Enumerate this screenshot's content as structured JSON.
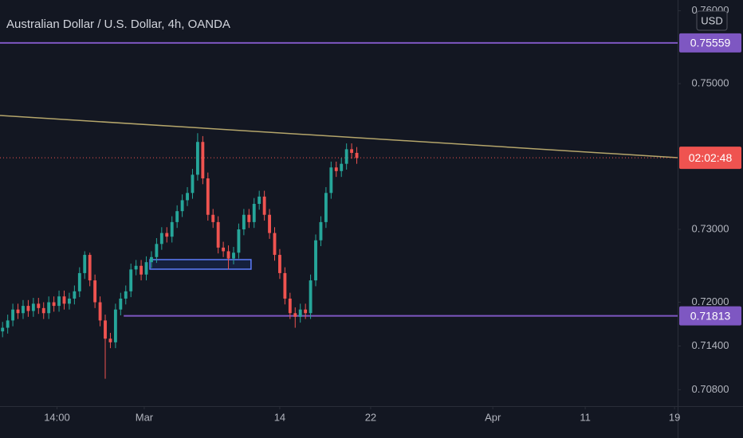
{
  "chart_data": {
    "type": "candlestick",
    "title": "Australian Dollar / U.S. Dollar, 4h, OANDA",
    "currency": "USD",
    "up_color": "#26a69a",
    "down_color": "#ef5350",
    "x": [
      0,
      1,
      2,
      3,
      4,
      5,
      6,
      7,
      8,
      9,
      10,
      11,
      12,
      13,
      14,
      15,
      16,
      17,
      18,
      19,
      20,
      21,
      22,
      23,
      24,
      25,
      26,
      27,
      28,
      29,
      30,
      31,
      32,
      33,
      34,
      35,
      36,
      37,
      38,
      39,
      40,
      41,
      42,
      43,
      44,
      45,
      46,
      47,
      48,
      49,
      50,
      51,
      52,
      53,
      54,
      55,
      56,
      57,
      58,
      59,
      60,
      61,
      62,
      63,
      64,
      65,
      66,
      67,
      68,
      69
    ],
    "open": [
      0.716,
      0.7165,
      0.7175,
      0.719,
      0.7185,
      0.7195,
      0.7188,
      0.7198,
      0.7192,
      0.7185,
      0.72,
      0.7195,
      0.7208,
      0.7198,
      0.7205,
      0.7215,
      0.724,
      0.7265,
      0.723,
      0.72,
      0.7175,
      0.715,
      0.7145,
      0.719,
      0.7205,
      0.7215,
      0.7245,
      0.725,
      0.7238,
      0.7255,
      0.7262,
      0.728,
      0.7295,
      0.729,
      0.731,
      0.7325,
      0.734,
      0.735,
      0.7375,
      0.742,
      0.737,
      0.732,
      0.731,
      0.7275,
      0.727,
      0.726,
      0.7268,
      0.73,
      0.732,
      0.731,
      0.7335,
      0.7345,
      0.732,
      0.7295,
      0.7265,
      0.724,
      0.7205,
      0.7185,
      0.718,
      0.719,
      0.7185,
      0.723,
      0.7285,
      0.731,
      0.735,
      0.7385,
      0.738,
      0.739,
      0.741,
      0.7405
    ],
    "high": [
      0.7173,
      0.7183,
      0.7198,
      0.7198,
      0.7203,
      0.7203,
      0.7206,
      0.7206,
      0.72,
      0.7208,
      0.7208,
      0.7216,
      0.7216,
      0.7213,
      0.7223,
      0.7248,
      0.727,
      0.7268,
      0.7238,
      0.7208,
      0.7183,
      0.7158,
      0.7198,
      0.7213,
      0.7223,
      0.7253,
      0.7258,
      0.7258,
      0.7263,
      0.727,
      0.7288,
      0.7303,
      0.7303,
      0.7318,
      0.7333,
      0.7348,
      0.7358,
      0.7383,
      0.7432,
      0.7428,
      0.7378,
      0.7328,
      0.7318,
      0.7283,
      0.7278,
      0.7276,
      0.7308,
      0.7328,
      0.7328,
      0.7343,
      0.7353,
      0.7353,
      0.7328,
      0.7303,
      0.7273,
      0.7248,
      0.7213,
      0.7193,
      0.7198,
      0.7198,
      0.7238,
      0.7293,
      0.7318,
      0.7358,
      0.7393,
      0.7393,
      0.7398,
      0.7418,
      0.7418,
      0.7413
    ],
    "low": [
      0.7152,
      0.7157,
      0.7167,
      0.7177,
      0.7177,
      0.718,
      0.718,
      0.7184,
      0.7177,
      0.7177,
      0.7187,
      0.7187,
      0.719,
      0.719,
      0.7197,
      0.7207,
      0.7232,
      0.7222,
      0.7192,
      0.7167,
      0.7095,
      0.7137,
      0.7137,
      0.7182,
      0.7197,
      0.7207,
      0.7237,
      0.723,
      0.723,
      0.7247,
      0.7254,
      0.7272,
      0.7282,
      0.7282,
      0.7302,
      0.7317,
      0.7332,
      0.7342,
      0.7367,
      0.7362,
      0.7312,
      0.7302,
      0.7267,
      0.7262,
      0.7245,
      0.7252,
      0.726,
      0.7292,
      0.7302,
      0.7302,
      0.7327,
      0.7312,
      0.7287,
      0.7257,
      0.7232,
      0.7197,
      0.7177,
      0.7165,
      0.7172,
      0.7177,
      0.7177,
      0.7222,
      0.7277,
      0.7302,
      0.7342,
      0.7372,
      0.7372,
      0.7382,
      0.7397,
      0.739
    ],
    "close": [
      0.7165,
      0.7175,
      0.719,
      0.7185,
      0.7195,
      0.7188,
      0.7198,
      0.7192,
      0.7185,
      0.72,
      0.7195,
      0.7208,
      0.7198,
      0.7205,
      0.7215,
      0.724,
      0.7265,
      0.723,
      0.72,
      0.7175,
      0.715,
      0.7145,
      0.719,
      0.7205,
      0.7215,
      0.7245,
      0.725,
      0.7238,
      0.7255,
      0.7262,
      0.728,
      0.7295,
      0.729,
      0.731,
      0.7325,
      0.734,
      0.735,
      0.7375,
      0.742,
      0.737,
      0.732,
      0.731,
      0.7275,
      0.727,
      0.726,
      0.7268,
      0.73,
      0.732,
      0.731,
      0.7335,
      0.7345,
      0.732,
      0.7295,
      0.7265,
      0.724,
      0.7205,
      0.7185,
      0.718,
      0.719,
      0.7185,
      0.723,
      0.7285,
      0.731,
      0.735,
      0.7385,
      0.738,
      0.739,
      0.741,
      0.7405,
      0.7398
    ],
    "xlim": [
      -0.5,
      131.5
    ],
    "xticks": [
      {
        "value": 10.6,
        "label": "14:00"
      },
      {
        "value": 27.6,
        "label": "Mar"
      },
      {
        "value": 54,
        "label": "14"
      },
      {
        "value": 71.7,
        "label": "22"
      },
      {
        "value": 95.5,
        "label": "Apr"
      },
      {
        "value": 113.5,
        "label": "11"
      },
      {
        "value": 130.9,
        "label": "19"
      }
    ],
    "ylim": [
      0.70574,
      0.76148
    ],
    "yticks": [
      {
        "value": 0.708,
        "label": "0.70800"
      },
      {
        "value": 0.714,
        "label": "0.71400"
      },
      {
        "value": 0.72,
        "label": "0.72000"
      },
      {
        "value": 0.73,
        "label": "0.73000"
      },
      {
        "value": 0.75,
        "label": "0.75000"
      },
      {
        "value": 0.76,
        "label": "0.76000"
      }
    ],
    "horizontal_lines": [
      {
        "value": 0.75559,
        "label": "0.75559",
        "from": -0.5,
        "color": "#7e57c2"
      },
      {
        "value": 0.71813,
        "label": "0.71813",
        "from": 23.6,
        "color": "#7e57c2"
      }
    ],
    "trend_line": {
      "x": [
        -0.5,
        131.5
      ],
      "y": [
        0.74563,
        0.73984
      ],
      "color": "#b5a66b"
    },
    "rectangle": {
      "x": [
        28.7,
        48.4
      ],
      "y": [
        0.72585,
        0.72454
      ],
      "color": "#5c7cfa"
    },
    "current_price": {
      "value": 0.73983,
      "label": "02:02:48",
      "color": "#ef5350"
    }
  }
}
